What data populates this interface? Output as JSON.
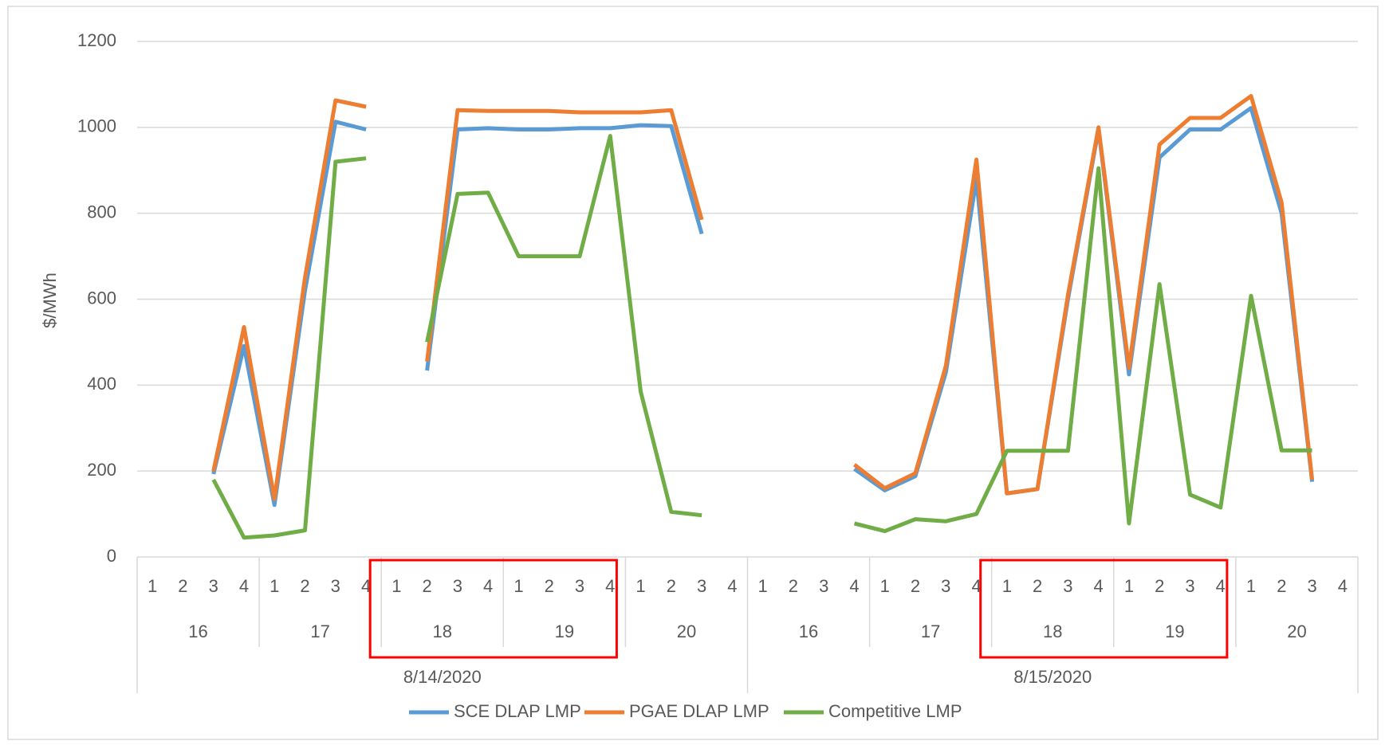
{
  "chart_data": {
    "type": "line",
    "y_label": "$/MWh",
    "categories": [
      "1",
      "2",
      "3",
      "4",
      "1",
      "2",
      "3",
      "4",
      "1",
      "2",
      "3",
      "4",
      "1",
      "2",
      "3",
      "4",
      "1",
      "2",
      "3",
      "4",
      "1",
      "2",
      "3",
      "4",
      "1",
      "2",
      "3",
      "4",
      "1",
      "2",
      "3",
      "4",
      "1",
      "2",
      "3",
      "4",
      "1",
      "2",
      "3",
      "4"
    ],
    "hours": [
      "16",
      "17",
      "18",
      "19",
      "20",
      "16",
      "17",
      "18",
      "19",
      "20"
    ],
    "days": [
      "8/14/2020",
      "8/15/2020"
    ],
    "series": [
      {
        "name": "SCE DLAP LMP",
        "color": "#5b9bd5",
        "values": [
          null,
          null,
          193,
          491,
          121,
          620,
          1013,
          995,
          null,
          434,
          995,
          998,
          995,
          995,
          998,
          998,
          1005,
          1003,
          752,
          null,
          null,
          null,
          null,
          205,
          155,
          188,
          430,
          880,
          148,
          158,
          600,
          995,
          425,
          930,
          995,
          995,
          1045,
          800,
          175,
          null
        ]
      },
      {
        "name": "PGAE DLAP LMP",
        "color": "#ed7d31",
        "values": [
          null,
          null,
          200,
          535,
          135,
          650,
          1063,
          1048,
          null,
          455,
          1040,
          1038,
          1038,
          1038,
          1035,
          1035,
          1035,
          1040,
          785,
          null,
          null,
          null,
          null,
          215,
          160,
          195,
          445,
          925,
          148,
          158,
          610,
          1000,
          440,
          960,
          1022,
          1022,
          1073,
          825,
          180,
          null
        ]
      },
      {
        "name": "Competitive LMP",
        "color": "#70ad47",
        "values": [
          null,
          null,
          180,
          45,
          50,
          62,
          920,
          928,
          null,
          500,
          845,
          848,
          700,
          700,
          700,
          980,
          385,
          105,
          97,
          null,
          null,
          null,
          null,
          78,
          60,
          88,
          83,
          100,
          247,
          247,
          247,
          905,
          78,
          635,
          145,
          115,
          608,
          248,
          248,
          null
        ]
      }
    ],
    "ylim": [
      0,
      1200
    ],
    "yticks": [
      0,
      200,
      400,
      600,
      800,
      1000,
      1200
    ],
    "grid": true,
    "legend": "bottom"
  }
}
